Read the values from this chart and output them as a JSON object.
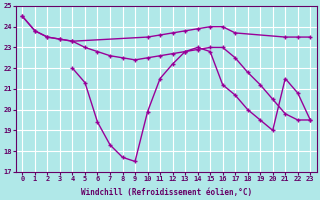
{
  "background_color": "#b0e8e8",
  "grid_color": "#ffffff",
  "line_color": "#990099",
  "xlabel": "Windchill (Refroidissement éolien,°C)",
  "xlabel_color": "#660066",
  "tick_color": "#660066",
  "xlim": [
    -0.5,
    23.5
  ],
  "ylim": [
    17,
    25
  ],
  "yticks": [
    17,
    18,
    19,
    20,
    21,
    22,
    23,
    24,
    25
  ],
  "xticks": [
    0,
    1,
    2,
    3,
    4,
    5,
    6,
    7,
    8,
    9,
    10,
    11,
    12,
    13,
    14,
    15,
    16,
    17,
    18,
    19,
    20,
    21,
    22,
    23
  ],
  "line1_x": [
    0,
    1,
    2,
    3,
    4,
    10,
    11,
    12,
    13,
    14,
    15,
    16,
    17,
    21,
    22,
    23
  ],
  "line1_y": [
    24.5,
    23.8,
    23.5,
    23.4,
    23.3,
    23.5,
    23.6,
    23.7,
    23.8,
    23.9,
    24.0,
    24.0,
    23.7,
    23.5,
    23.5,
    23.5
  ],
  "line2_x": [
    0,
    1,
    2,
    3,
    4,
    5,
    6,
    7,
    8,
    9,
    10,
    11,
    12,
    13,
    14,
    15,
    16,
    17,
    18,
    19,
    20,
    21,
    22,
    23
  ],
  "line2_y": [
    24.5,
    23.8,
    23.5,
    23.4,
    23.3,
    23.0,
    22.8,
    22.6,
    22.5,
    22.4,
    22.5,
    22.6,
    22.7,
    22.8,
    22.9,
    23.0,
    23.0,
    22.5,
    21.8,
    21.2,
    20.5,
    19.8,
    19.5,
    19.5
  ],
  "line3_x": [
    4,
    5,
    6,
    7,
    8,
    9,
    10,
    11,
    12,
    13,
    14,
    15,
    16,
    17,
    18,
    19,
    20,
    21,
    22,
    23
  ],
  "line3_y": [
    22.0,
    21.3,
    19.4,
    18.3,
    17.7,
    17.5,
    19.9,
    21.5,
    22.2,
    22.8,
    23.0,
    22.8,
    21.2,
    20.7,
    20.0,
    19.5,
    19.0,
    21.5,
    20.8,
    19.5
  ]
}
